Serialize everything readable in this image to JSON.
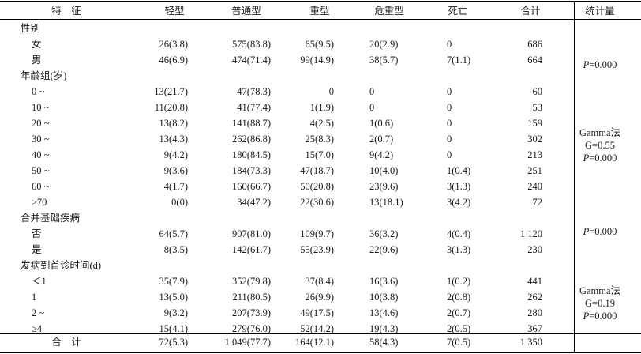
{
  "header": {
    "feature": "特　征",
    "mild": "轻型",
    "common": "普通型",
    "severe": "重型",
    "critical": "危重型",
    "death": "死亡",
    "total": "合计",
    "statistic": "统计量"
  },
  "rows": [
    {
      "type": "section",
      "label": "性别"
    },
    {
      "type": "data",
      "label": "女",
      "cells": [
        "26(3.8)",
        "575(83.8)",
        "65(9.5)",
        "20(2.9)",
        "0",
        "686"
      ]
    },
    {
      "type": "data",
      "label": "男",
      "cells": [
        "46(6.9)",
        "474(71.4)",
        "99(14.9)",
        "38(5.7)",
        "7(1.1)",
        "664"
      ]
    },
    {
      "type": "section",
      "label": "年龄组(岁)"
    },
    {
      "type": "data",
      "label": "0 ~",
      "cells": [
        "13(21.7)",
        "47(78.3)",
        "0",
        "0",
        "0",
        "60"
      ]
    },
    {
      "type": "data",
      "label": "10 ~",
      "cells": [
        "11(20.8)",
        "41(77.4)",
        "1(1.9)",
        "0",
        "0",
        "53"
      ]
    },
    {
      "type": "data",
      "label": "20 ~",
      "cells": [
        "13(8.2)",
        "141(88.7)",
        "4(2.5)",
        "1(0.6)",
        "0",
        "159"
      ]
    },
    {
      "type": "data",
      "label": "30 ~",
      "cells": [
        "13(4.3)",
        "262(86.8)",
        "25(8.3)",
        "2(0.7)",
        "0",
        "302"
      ]
    },
    {
      "type": "data",
      "label": "40 ~",
      "cells": [
        "9(4.2)",
        "180(84.5)",
        "15(7.0)",
        "9(4.2)",
        "0",
        "213"
      ]
    },
    {
      "type": "data",
      "label": "50 ~",
      "cells": [
        "9(3.6)",
        "184(73.3)",
        "47(18.7)",
        "10(4.0)",
        "1(0.4)",
        "251"
      ]
    },
    {
      "type": "data",
      "label": "60 ~",
      "cells": [
        "4(1.7)",
        "160(66.7)",
        "50(20.8)",
        "23(9.6)",
        "3(1.3)",
        "240"
      ]
    },
    {
      "type": "data",
      "label": "≥70",
      "cells": [
        "0(0)",
        "34(47.2)",
        "22(30.6)",
        "13(18.1)",
        "3(4.2)",
        "72"
      ]
    },
    {
      "type": "section",
      "label": "合并基础疾病"
    },
    {
      "type": "data",
      "label": "否",
      "cells": [
        "64(5.7)",
        "907(81.0)",
        "109(9.7)",
        "36(3.2)",
        "4(0.4)",
        "1 120"
      ]
    },
    {
      "type": "data",
      "label": "是",
      "cells": [
        "8(3.5)",
        "142(61.7)",
        "55(23.9)",
        "22(9.6)",
        "3(1.3)",
        "230"
      ]
    },
    {
      "type": "section",
      "label": "发病到首诊时间(d)"
    },
    {
      "type": "data",
      "label": "＜1",
      "cells": [
        "35(7.9)",
        "352(79.8)",
        "37(8.4)",
        "16(3.6)",
        "1(0.2)",
        "441"
      ]
    },
    {
      "type": "data",
      "label": "1",
      "cells": [
        "13(5.0)",
        "211(80.5)",
        "26(9.9)",
        "10(3.8)",
        "2(0.8)",
        "262"
      ]
    },
    {
      "type": "data",
      "label": "2 ~",
      "cells": [
        "9(3.2)",
        "207(73.9)",
        "49(17.5)",
        "13(4.6)",
        "2(0.7)",
        "280"
      ]
    },
    {
      "type": "data",
      "label": "≥4",
      "cells": [
        "15(4.1)",
        "279(76.0)",
        "52(14.2)",
        "19(4.3)",
        "2(0.5)",
        "367"
      ]
    }
  ],
  "total_row": {
    "label": "合　计",
    "cells": [
      "72(5.3)",
      "1 049(77.7)",
      "164(12.1)",
      "58(4.3)",
      "7(0.5)",
      "1 350"
    ]
  },
  "stats": {
    "sex": "P=0.000",
    "age": [
      "Gamma法",
      "G=0.55",
      "P=0.000"
    ],
    "disease": "P=0.000",
    "onset": [
      "Gamma法",
      "G=0.19",
      "P=0.000"
    ]
  }
}
